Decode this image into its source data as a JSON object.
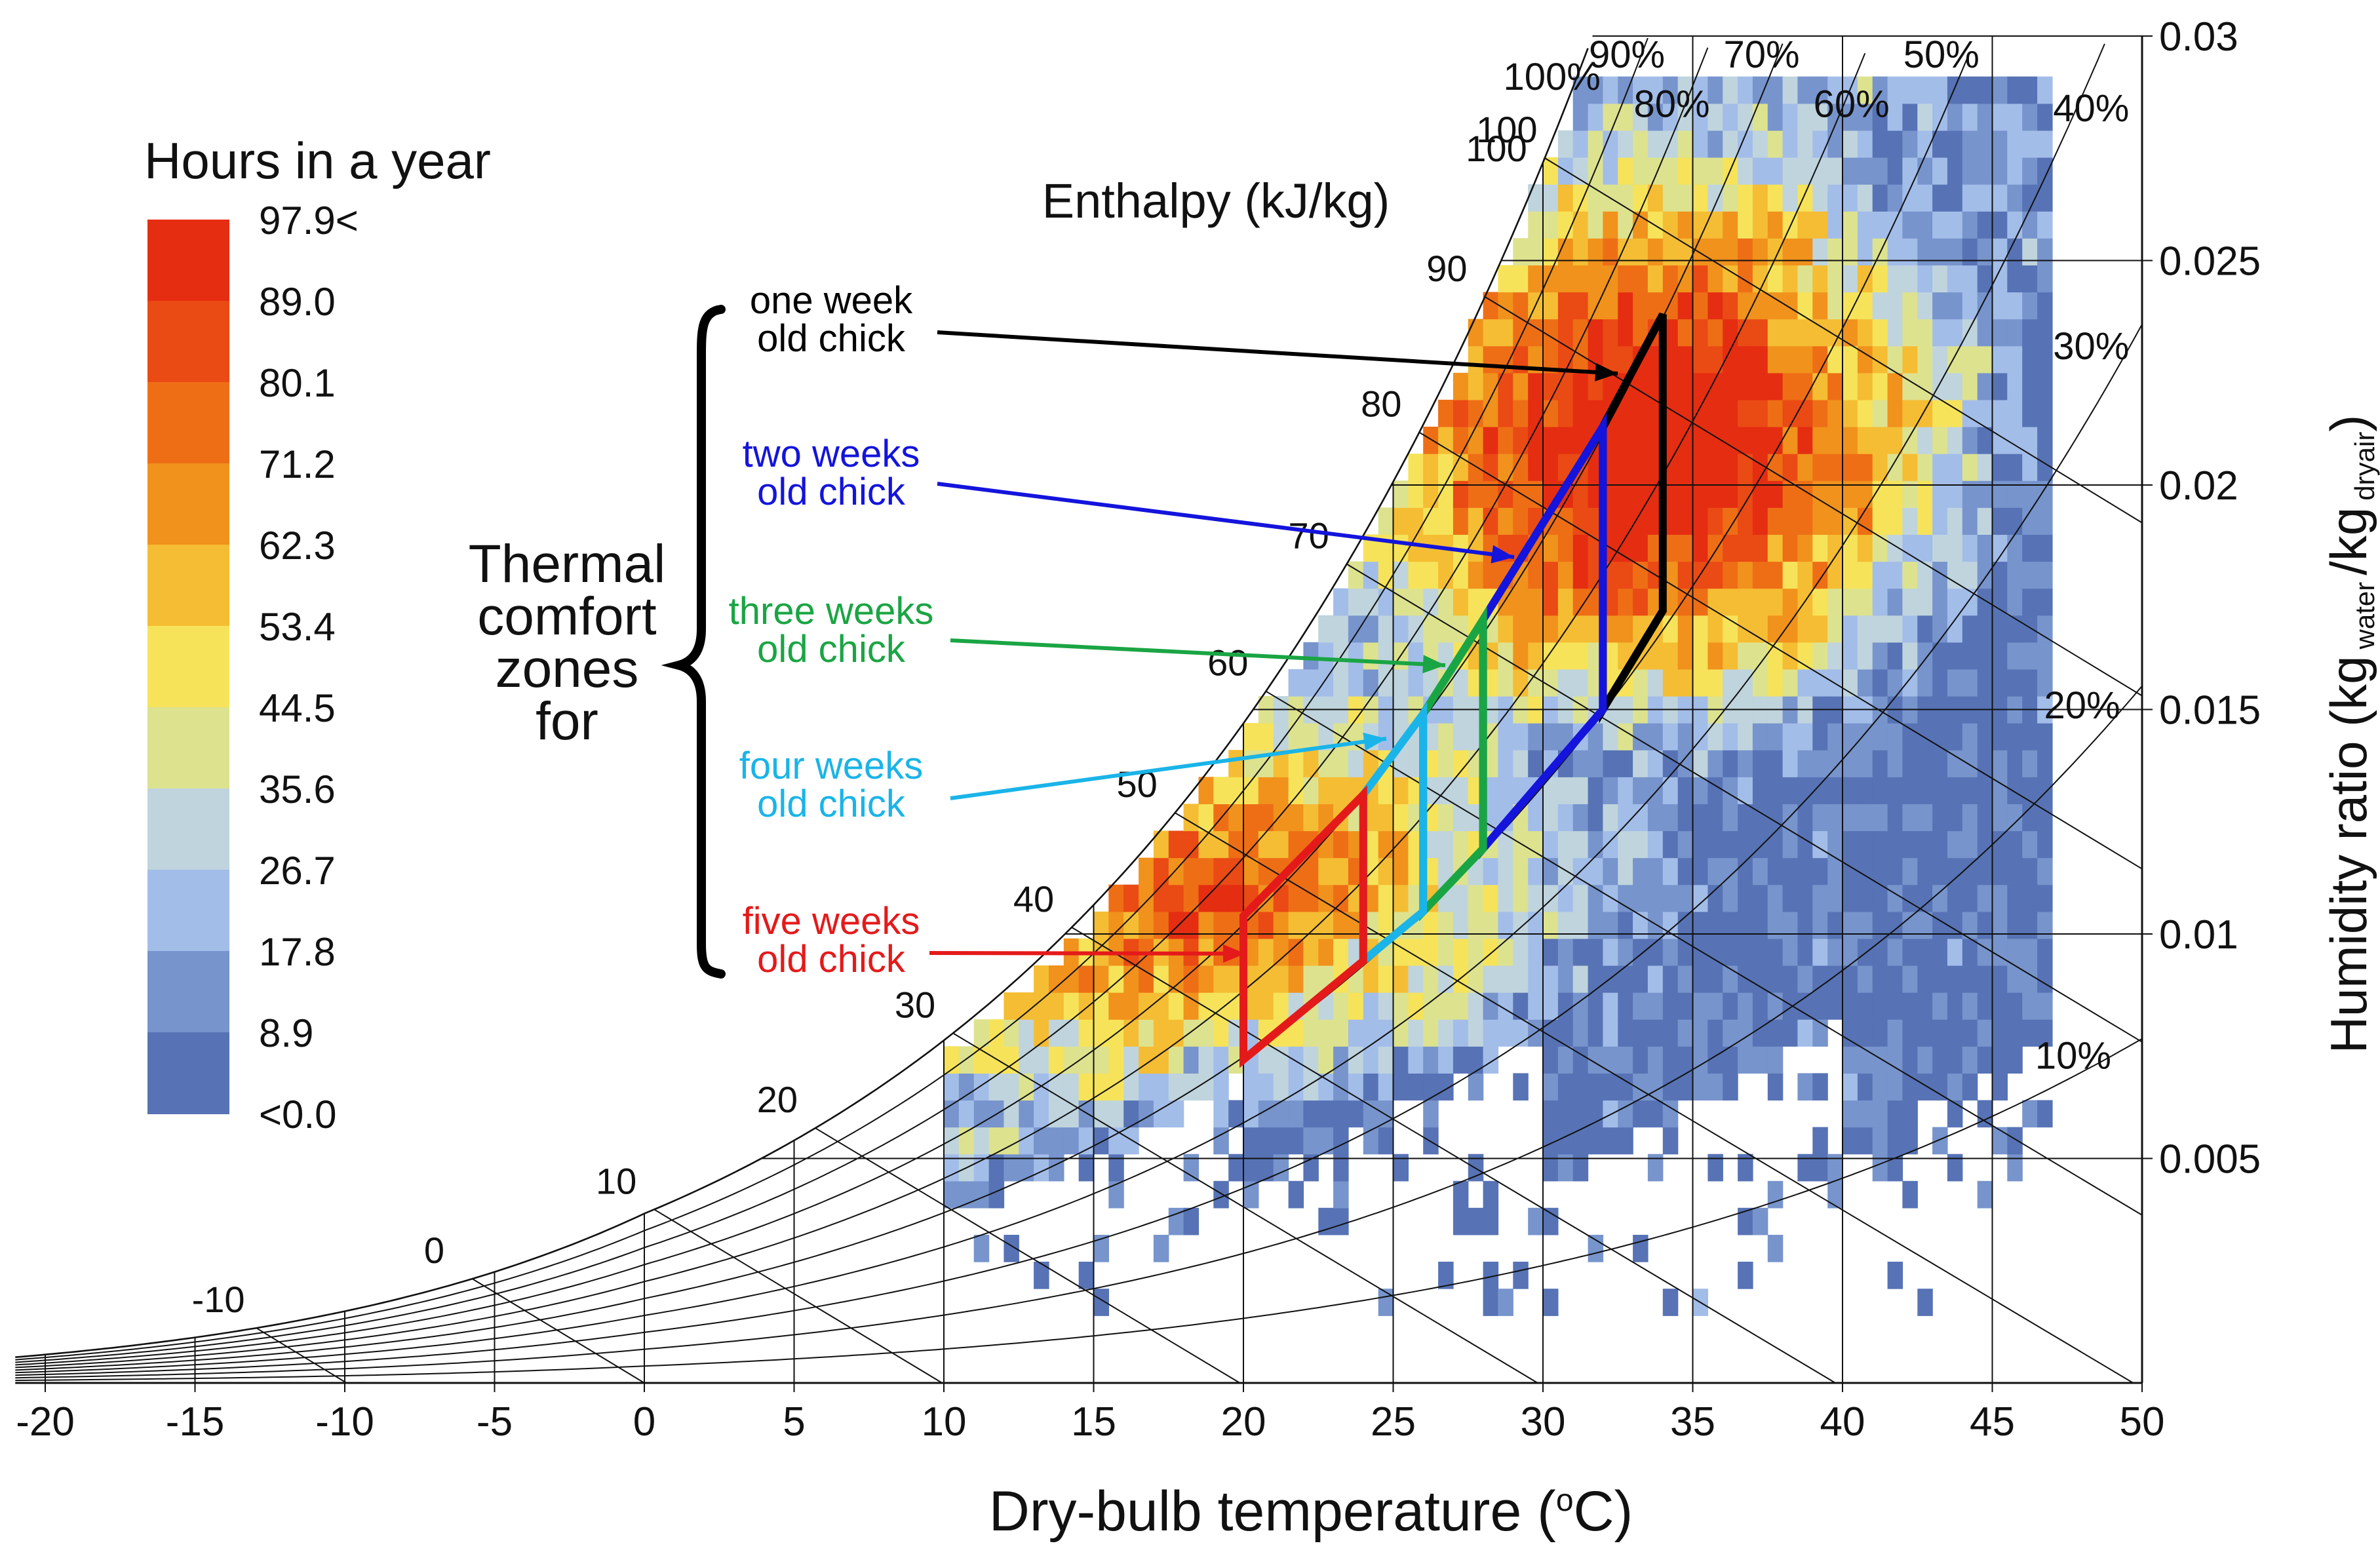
{
  "chart_data": {
    "type": "heatmap",
    "subtype": "psychrometric-chart",
    "xlabel": "Dry-bulb temperature (°C)",
    "xlabel_unit_sup": "o",
    "ylabel_main": "Humidity ratio (kg",
    "ylabel_sub1": "water",
    "ylabel_mid": "/kg",
    "ylabel_sub2": "dryair",
    "ylabel_close": ")",
    "xlim": [
      -21,
      50
    ],
    "ylim": [
      0,
      0.03
    ],
    "x_ticks": [
      "-20",
      "-15",
      "-10",
      "-5",
      "0",
      "5",
      "10",
      "15",
      "20",
      "25",
      "30",
      "35",
      "40",
      "45",
      "50"
    ],
    "x_tick_values": [
      -20,
      -15,
      -10,
      -5,
      0,
      5,
      10,
      15,
      20,
      25,
      30,
      35,
      40,
      45,
      50
    ],
    "y_ticks": [
      "0.005",
      "0.01",
      "0.015",
      "0.02",
      "0.025",
      "0.03"
    ],
    "y_tick_values": [
      0.005,
      0.01,
      0.015,
      0.02,
      0.025,
      0.03
    ],
    "rh_curves": [
      10,
      20,
      30,
      40,
      50,
      60,
      70,
      80,
      90,
      100
    ],
    "rh_labels": [
      {
        "text": "10%",
        "x": 47.7,
        "y": 0.007
      },
      {
        "text": "20%",
        "x": 48.0,
        "y": 0.0148
      },
      {
        "text": "30%",
        "x": 48.3,
        "y": 0.0228
      },
      {
        "text": "40%",
        "x": 48.3,
        "y": 0.0281
      },
      {
        "text": "50%",
        "x": 43.3,
        "y": 0.0293
      },
      {
        "text": "60%",
        "x": 40.3,
        "y": 0.0282
      },
      {
        "text": "70%",
        "x": 37.3,
        "y": 0.0293
      },
      {
        "text": "80%",
        "x": 34.3,
        "y": 0.0282
      },
      {
        "text": "90%",
        "x": 32.8,
        "y": 0.0293
      },
      {
        "text": "100%",
        "x": 30.3,
        "y": 0.0288
      }
    ],
    "enthalpy_title": "Enthalpy (kJ/kg)",
    "enthalpy_lines": [
      -10,
      0,
      10,
      20,
      30,
      40,
      50,
      60,
      70,
      80,
      90,
      100
    ],
    "enthalpy_labels": [
      "-10",
      "0",
      "10",
      "20",
      "30",
      "40",
      "50",
      "60",
      "70",
      "80",
      "90",
      "100"
    ],
    "legend": {
      "title": "Hours in a year",
      "labels": [
        "97.9<",
        "89.0",
        "80.1",
        "71.2",
        "62.3",
        "53.4",
        "44.5",
        "35.6",
        "26.7",
        "17.8",
        "8.9",
        "<0.0"
      ],
      "colors": [
        "#e52d12",
        "#ea4a14",
        "#ee6e16",
        "#f0921c",
        "#f5bd33",
        "#f6e35a",
        "#dde28f",
        "#bfd4dd",
        "#a3bde9",
        "#7794cc",
        "#5773b5"
      ]
    },
    "comfort_group_label": [
      "Thermal",
      "comfort",
      "zones",
      "for"
    ],
    "zones": [
      {
        "label": [
          "one week",
          "old chick"
        ],
        "color": "#000000",
        "polygon": [
          [
            32,
            0.0213
          ],
          [
            34,
            0.0238
          ],
          [
            34,
            0.0172
          ],
          [
            32,
            0.015
          ]
        ]
      },
      {
        "label": [
          "two weeks",
          "old chick"
        ],
        "color": "#1414dc",
        "polygon": [
          [
            28,
            0.017
          ],
          [
            32,
            0.0213
          ],
          [
            32,
            0.015
          ],
          [
            28,
            0.0119
          ]
        ]
      },
      {
        "label": [
          "three weeks",
          "old chick"
        ],
        "color": "#1aa544",
        "polygon": [
          [
            26,
            0.0149
          ],
          [
            28,
            0.017
          ],
          [
            28,
            0.0119
          ],
          [
            26,
            0.0105
          ]
        ]
      },
      {
        "label": [
          "four weeks",
          "old chick"
        ],
        "color": "#1ab4e8",
        "polygon": [
          [
            24,
            0.0131
          ],
          [
            26,
            0.0149
          ],
          [
            26,
            0.0105
          ],
          [
            24,
            0.0094
          ]
        ]
      },
      {
        "label": [
          "five weeks",
          "old chick"
        ],
        "color": "#e41a1a",
        "polygon": [
          [
            20,
            0.0104
          ],
          [
            24,
            0.0131
          ],
          [
            24,
            0.0094
          ],
          [
            20,
            0.0072
          ]
        ]
      }
    ]
  }
}
